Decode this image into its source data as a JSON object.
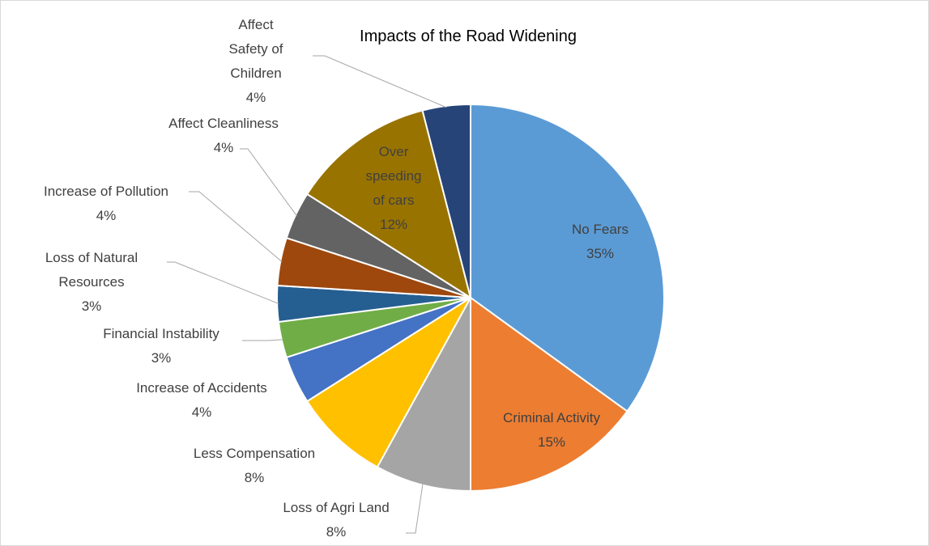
{
  "chart_data": {
    "type": "pie",
    "title": "Impacts of the Road Widening",
    "categories": [
      "No Fears",
      "Criminal Activity",
      "Loss of Agri Land",
      "Less Compensation",
      "Increase of Accidents",
      "Financial Instability",
      "Loss of Natural Resources",
      "Increase of Pollution",
      "Affect Cleanliness",
      "Over speeding of cars",
      "Affect Safety of Children"
    ],
    "values": [
      35,
      15,
      8,
      8,
      4,
      3,
      3,
      4,
      4,
      12,
      4
    ],
    "value_labels": [
      "35%",
      "15%",
      "8%",
      "8%",
      "4%",
      "3%",
      "3%",
      "4%",
      "4%",
      "12%",
      "4%"
    ],
    "colors": [
      "#5b9bd5",
      "#ed7d31",
      "#a5a5a5",
      "#ffc000",
      "#4472c4",
      "#70ad47",
      "#255e91",
      "#9e480e",
      "#636363",
      "#997300",
      "#264478"
    ]
  }
}
